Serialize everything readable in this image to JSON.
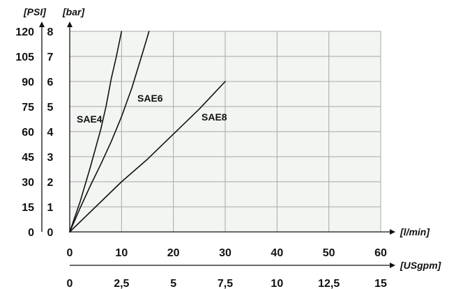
{
  "chart_data": {
    "type": "line",
    "title": "",
    "xlabel": "[l/min]",
    "xlabel_secondary": "[USgpm]",
    "ylabel": "[bar]",
    "ylabel_secondary": "[PSI]",
    "xlim": [
      0,
      60
    ],
    "ylim": [
      0,
      8
    ],
    "grid": true,
    "x_ticks": [
      0,
      10,
      20,
      30,
      40,
      50,
      60
    ],
    "x_tick_labels": [
      "0",
      "10",
      "20",
      "30",
      "40",
      "50",
      "60"
    ],
    "x2_tick_labels": [
      "0",
      "2,5",
      "5",
      "7,5",
      "10",
      "12,5",
      "15"
    ],
    "y_ticks": [
      0,
      1,
      2,
      3,
      4,
      5,
      6,
      7,
      8
    ],
    "y_tick_labels": [
      "0",
      "1",
      "2",
      "3",
      "4",
      "5",
      "6",
      "7",
      "8"
    ],
    "y2_tick_labels": [
      "0",
      "15",
      "30",
      "45",
      "60",
      "75",
      "90",
      "105",
      "120"
    ],
    "series": [
      {
        "name": "SAE4",
        "x": [
          0,
          2,
          4,
          6,
          7,
          8,
          9,
          9.6,
          10
        ],
        "y": [
          0,
          1.2,
          2.6,
          4.1,
          5.0,
          6.1,
          7.0,
          7.6,
          8.0
        ]
      },
      {
        "name": "SAE6",
        "x": [
          0,
          2,
          4,
          6,
          8,
          10,
          12,
          14,
          15.3
        ],
        "y": [
          0,
          0.95,
          1.85,
          2.7,
          3.6,
          4.6,
          5.75,
          7.1,
          8.0
        ]
      },
      {
        "name": "SAE8",
        "x": [
          0,
          5,
          10,
          15,
          20,
          25,
          30
        ],
        "y": [
          0,
          1.0,
          2.0,
          2.9,
          3.9,
          4.9,
          6.0
        ]
      }
    ]
  }
}
